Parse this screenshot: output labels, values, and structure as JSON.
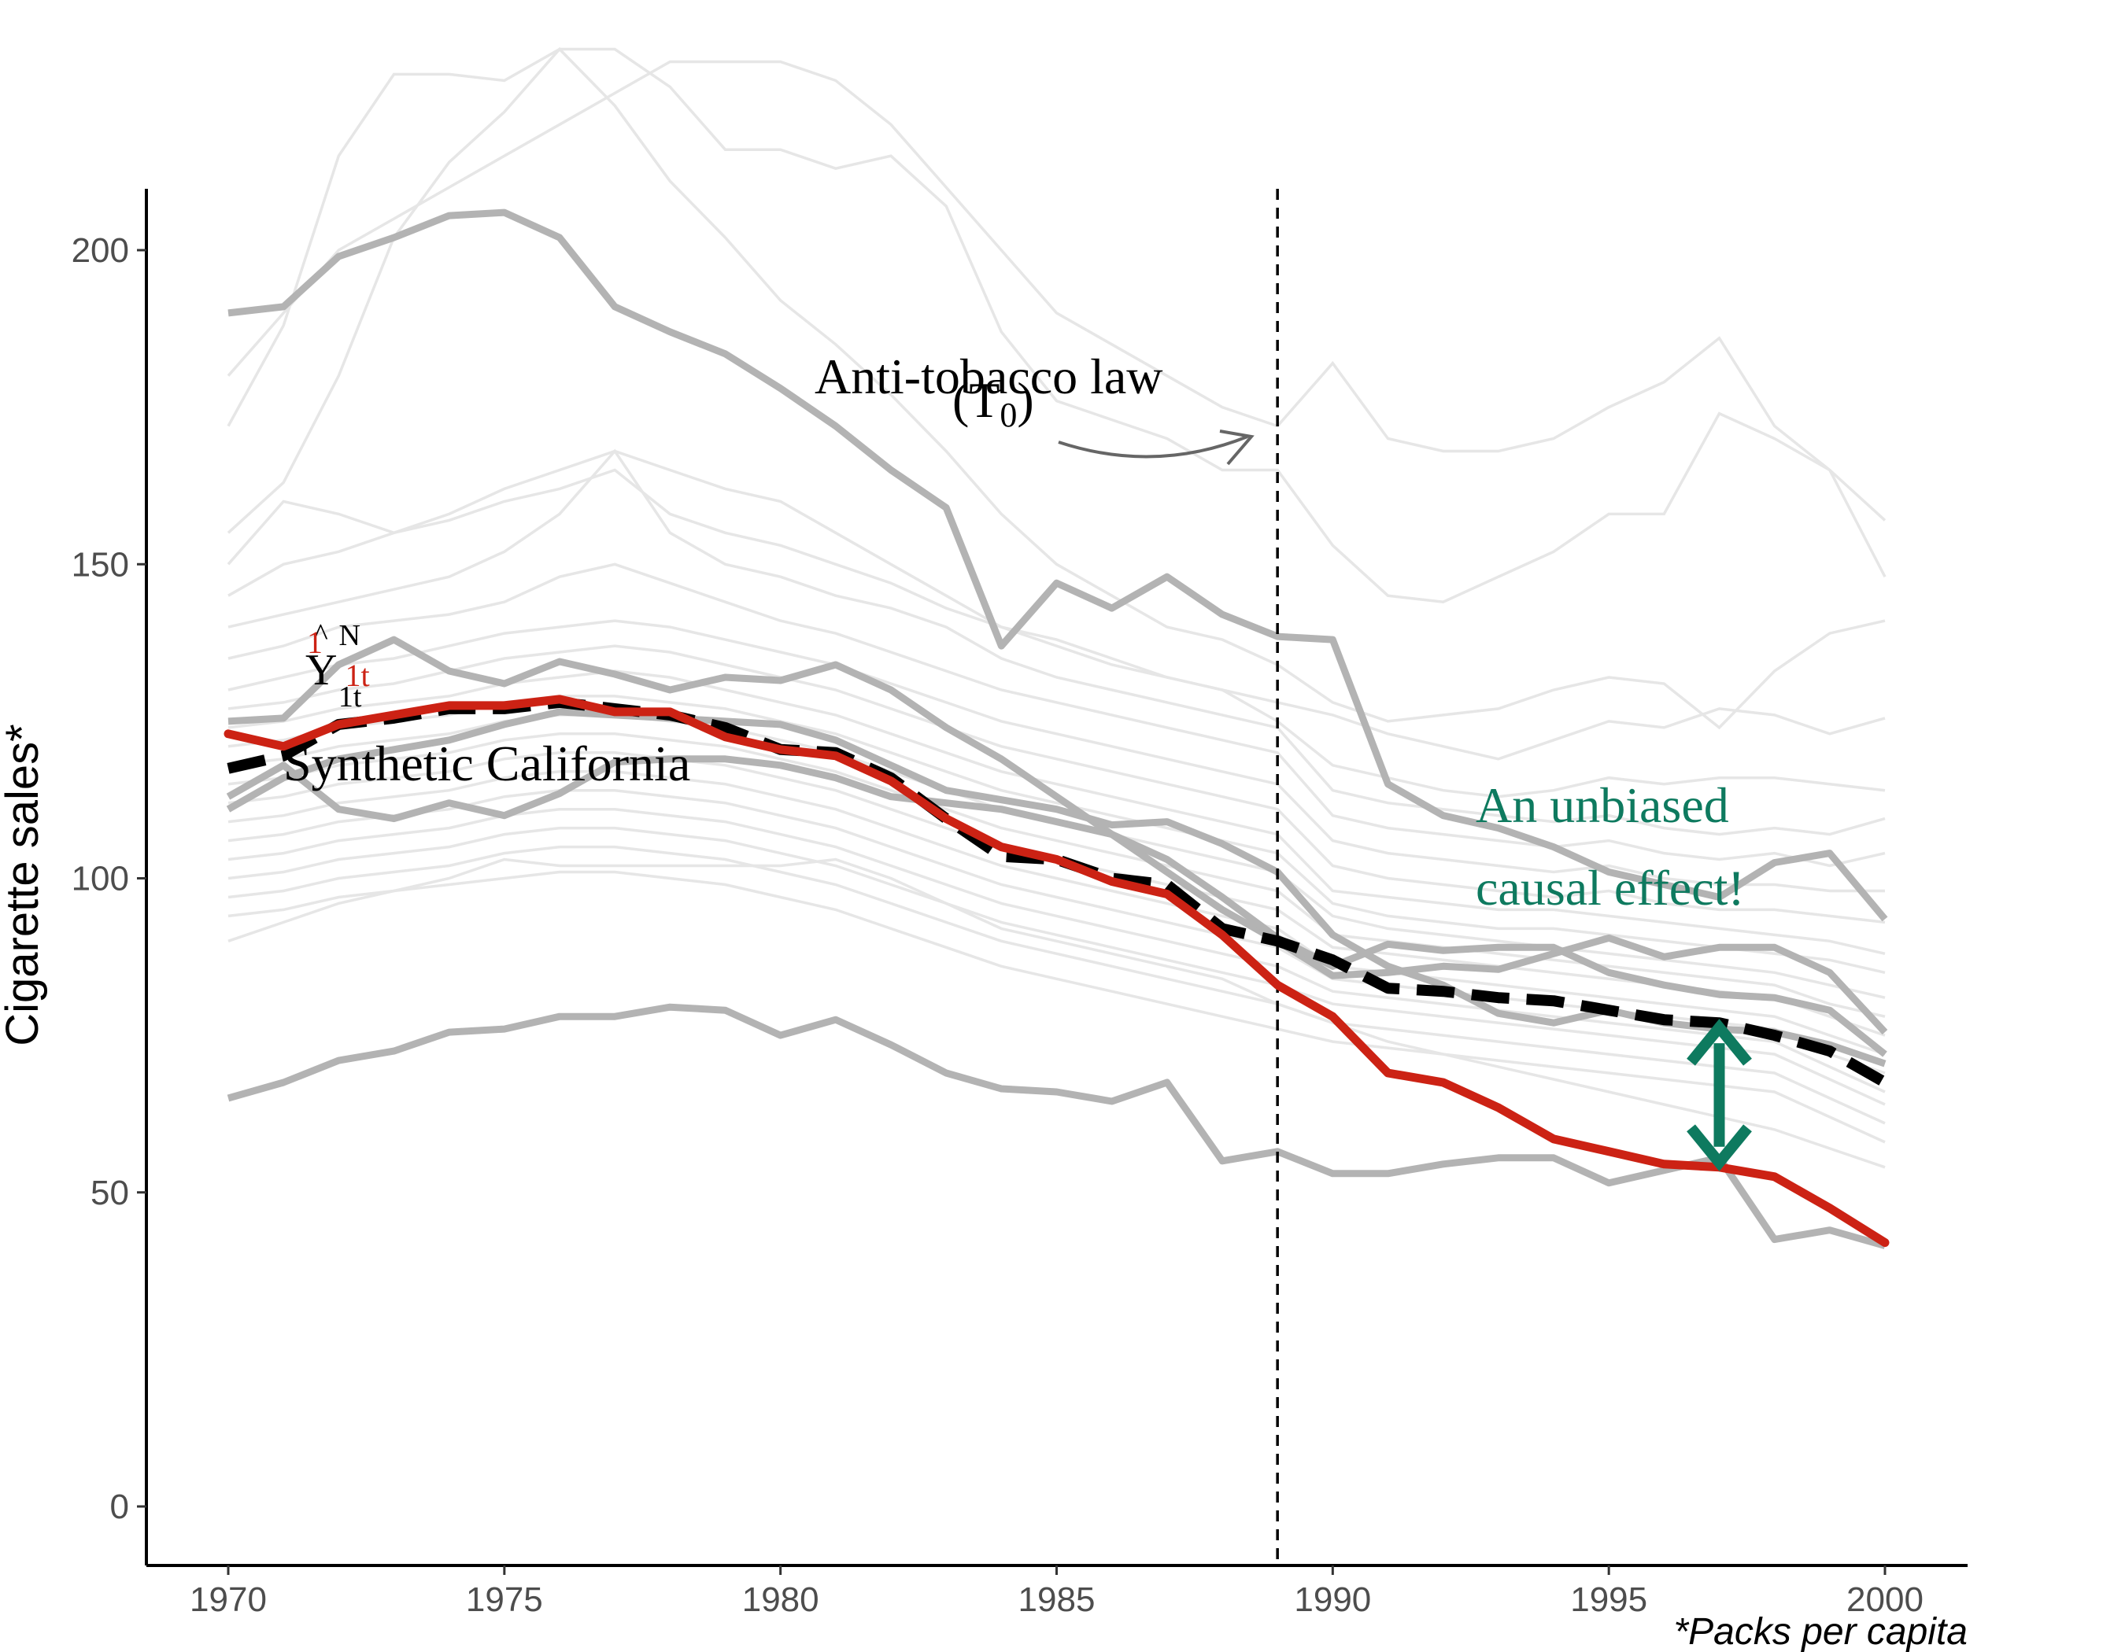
{
  "chart_data": {
    "type": "line",
    "title": "",
    "xlabel": "",
    "ylabel": "Cigarette sales*",
    "caption": "*Packs per capita",
    "xlim": [
      1970,
      2000
    ],
    "ylim": [
      -10,
      210
    ],
    "x_ticks": [
      1970,
      1975,
      1980,
      1985,
      1990,
      1995,
      2000
    ],
    "y_ticks": [
      0,
      50,
      100,
      150,
      200
    ],
    "grid": false,
    "treatment_year": 1989,
    "colors": {
      "california": "#cc2214",
      "synthetic": "#000000",
      "donor_highlight": "#b3b3b3",
      "donor_faint": "#e6e6e6",
      "effect": "#0e7a5f"
    },
    "annotations": {
      "law_label": "Anti-tobacco law",
      "law_sub": "(T",
      "law_sub_index": "0",
      "law_sub_close": ")",
      "synthetic_label": "Synthetic California",
      "effect_line1": "An unbiased",
      "effect_line2": "causal effect!",
      "y_label_main": "Y",
      "y_label_sup": "N",
      "y_label_sub": "1t",
      "y_label_red_sub": "1t",
      "y_label_red_sup": "1"
    },
    "x": [
      1970,
      1971,
      1972,
      1973,
      1974,
      1975,
      1976,
      1977,
      1978,
      1979,
      1980,
      1981,
      1982,
      1983,
      1984,
      1985,
      1986,
      1987,
      1988,
      1989,
      1990,
      1991,
      1992,
      1993,
      1994,
      1995,
      1996,
      1997,
      1998,
      1999,
      2000
    ],
    "california": [
      123.0,
      121.0,
      124.5,
      126.0,
      127.5,
      127.5,
      128.5,
      126.5,
      126.5,
      122.5,
      120.5,
      119.5,
      115.5,
      109.5,
      105.0,
      103.0,
      99.5,
      97.5,
      91.0,
      83.0,
      78.0,
      69.0,
      67.5,
      63.5,
      58.5,
      56.5,
      54.5,
      54.0,
      52.5,
      47.5,
      42.0
    ],
    "synthetic_california": [
      117.5,
      119.5,
      124.5,
      125.5,
      127.0,
      127.0,
      128.0,
      127.0,
      126.0,
      124.0,
      120.5,
      120.0,
      116.0,
      109.5,
      103.5,
      103.0,
      100.0,
      99.0,
      92.0,
      90.0,
      87.0,
      82.5,
      82.0,
      81.0,
      80.5,
      79.0,
      77.5,
      77.0,
      75.0,
      72.5,
      67.5
    ],
    "highlighted_donors": [
      {
        "values": [
          190.0,
          191.0,
          199.0,
          202.0,
          205.5,
          206.0,
          202.0,
          191.0,
          187.0,
          183.5,
          178.0,
          172.0,
          165.0,
          159.0,
          137.0,
          147.0,
          143.0,
          148.0,
          142.0,
          138.5,
          138.0,
          115.0,
          110.0,
          108.0,
          105.0,
          101.0,
          99.0,
          97.0,
          102.5,
          104.0,
          93.5
        ]
      },
      {
        "values": [
          125.0,
          125.5,
          134.0,
          138.0,
          133.0,
          131.0,
          134.5,
          132.5,
          130.0,
          132.0,
          131.5,
          134.0,
          130.0,
          124.0,
          119.0,
          113.0,
          107.0,
          101.0,
          95.0,
          90.0,
          84.5,
          85.0,
          86.0,
          85.5,
          88.0,
          90.5,
          87.5,
          89.0,
          89.0,
          85.0,
          75.5
        ]
      },
      {
        "values": [
          113.0,
          118.0,
          111.0,
          109.5,
          112.0,
          110.0,
          113.5,
          118.5,
          119.0,
          119.0,
          118.0,
          116.0,
          113.0,
          112.0,
          111.0,
          109.0,
          107.0,
          103.0,
          97.0,
          90.5,
          86.0,
          89.5,
          88.5,
          89.0,
          89.0,
          85.0,
          83.0,
          81.5,
          81.0,
          79.0,
          72.0
        ]
      },
      {
        "values": [
          111.0,
          116.0,
          119.0,
          120.5,
          122.0,
          124.5,
          126.5,
          126.0,
          125.5,
          125.0,
          124.5,
          122.0,
          118.0,
          114.0,
          112.5,
          111.0,
          108.5,
          109.0,
          105.5,
          101.0,
          91.0,
          86.0,
          83.0,
          78.5,
          77.0,
          79.0,
          77.0,
          76.0,
          75.5,
          73.5,
          70.5
        ]
      },
      {
        "values": [
          65.0,
          67.5,
          71.0,
          72.5,
          75.5,
          76.0,
          78.0,
          78.0,
          79.5,
          79.0,
          75.0,
          77.5,
          73.5,
          69.0,
          66.5,
          66.0,
          64.5,
          67.5,
          55.0,
          56.5,
          53.0,
          53.0,
          54.5,
          55.5,
          55.5,
          51.5,
          53.5,
          55.5,
          42.5,
          44.0,
          41.5
        ]
      }
    ],
    "faint_donors": [
      {
        "values": [
          180.0,
          190.0,
          200.0,
          205.0,
          210.0,
          215.0,
          220.0,
          225.0,
          230.0,
          230.0,
          230.0,
          227.0,
          220.0,
          210.0,
          200.0,
          190.0,
          185.0,
          180.0,
          175.0,
          172.0,
          182.0,
          170.0,
          168.0,
          168.0,
          170.0,
          175.0,
          179.0,
          186.0,
          172.0,
          165.0,
          148.0
        ]
      },
      {
        "values": [
          172.0,
          188.0,
          215.0,
          228.0,
          228.0,
          227.0,
          232.0,
          232.0,
          226.0,
          216.0,
          216.0,
          213.0,
          215.0,
          207.0,
          187.0,
          176.0,
          173.0,
          170.0,
          165.0,
          165.0,
          153.0,
          145.0,
          144.0,
          148.0,
          152.0,
          158.0,
          158.0,
          174.0,
          170.0,
          165.0,
          157.0
        ]
      },
      {
        "values": [
          155.0,
          163.0,
          180.0,
          202.0,
          214.0,
          222.0,
          232.0,
          223.0,
          211.0,
          202.0,
          192.0,
          185.0,
          177.0,
          168.0,
          158.0,
          150.0,
          145.0,
          140.0,
          138.0,
          134.0,
          128.0,
          125.0,
          126.0,
          127.0,
          130.0,
          132.0,
          131.0,
          124.0,
          133.0,
          139.0,
          141.0
        ]
      },
      {
        "values": [
          150.0,
          160.0,
          158.0,
          155.0,
          158.0,
          162.0,
          165.0,
          168.0,
          165.0,
          162.0,
          160.0,
          155.0,
          150.0,
          145.0,
          140.0,
          138.0,
          135.0,
          132.0,
          130.0,
          128.0,
          126.0,
          123.0,
          121.0,
          119.0,
          122.0,
          125.0,
          124.0,
          127.0,
          126.0,
          123.0,
          125.5
        ]
      },
      {
        "values": [
          145.0,
          150.0,
          152.0,
          155.0,
          157.0,
          160.0,
          162.0,
          165.0,
          158.0,
          155.0,
          153.0,
          150.0,
          147.0,
          143.0,
          140.0,
          137.0,
          134.0,
          132.0,
          130.0,
          125.0,
          118.0,
          116.0,
          114.0,
          113.0,
          114.0,
          116.0,
          115.0,
          116.0,
          116.0,
          115.0,
          114.0
        ]
      },
      {
        "values": [
          140.0,
          142.0,
          144.0,
          146.0,
          148.0,
          152.0,
          158.0,
          168.0,
          155.0,
          150.0,
          148.0,
          145.0,
          143.0,
          140.0,
          135.0,
          132.0,
          130.0,
          128.0,
          126.0,
          124.0,
          114.0,
          112.0,
          111.0,
          110.0,
          109.0,
          110.0,
          108.0,
          107.0,
          108.0,
          107.0,
          109.5
        ]
      },
      {
        "values": [
          135.0,
          137.0,
          140.0,
          141.0,
          142.0,
          144.0,
          148.0,
          150.0,
          147.0,
          144.0,
          141.0,
          139.0,
          136.0,
          133.0,
          130.0,
          128.0,
          126.0,
          124.0,
          122.0,
          120.0,
          110.0,
          108.0,
          107.0,
          106.0,
          105.0,
          106.0,
          104.0,
          103.0,
          104.0,
          102.0,
          104.0
        ]
      },
      {
        "values": [
          130.0,
          132.0,
          134.0,
          135.0,
          137.0,
          139.0,
          140.0,
          141.0,
          140.0,
          138.0,
          136.0,
          134.0,
          131.0,
          128.0,
          125.0,
          123.0,
          121.0,
          119.0,
          117.0,
          115.0,
          106.0,
          104.0,
          103.0,
          102.0,
          101.0,
          102.0,
          100.0,
          99.0,
          99.0,
          98.0,
          98.0
        ]
      },
      {
        "values": [
          127.0,
          128.0,
          130.0,
          131.0,
          133.0,
          135.0,
          136.0,
          137.0,
          136.0,
          134.0,
          132.0,
          130.0,
          127.0,
          124.0,
          121.0,
          119.0,
          117.0,
          115.0,
          113.0,
          111.0,
          102.0,
          100.0,
          99.0,
          98.0,
          97.0,
          98.0,
          96.0,
          95.0,
          95.0,
          94.0,
          93.0
        ]
      },
      {
        "values": [
          124.0,
          125.0,
          127.0,
          128.0,
          129.0,
          131.0,
          132.0,
          133.0,
          132.0,
          130.0,
          128.0,
          126.0,
          123.0,
          120.0,
          117.0,
          115.0,
          113.0,
          111.0,
          109.0,
          107.0,
          98.0,
          97.0,
          96.0,
          95.0,
          95.0,
          94.0,
          93.0,
          92.0,
          91.0,
          90.0,
          88.0
        ]
      },
      {
        "values": [
          121.0,
          122.0,
          124.0,
          125.0,
          126.0,
          128.0,
          129.0,
          129.0,
          128.0,
          127.0,
          125.0,
          123.0,
          120.0,
          117.0,
          114.0,
          112.0,
          110.0,
          108.0,
          106.0,
          104.0,
          96.0,
          94.0,
          93.0,
          92.0,
          92.0,
          91.0,
          90.0,
          89.0,
          88.0,
          87.0,
          85.0
        ]
      },
      {
        "values": [
          118.0,
          119.0,
          121.0,
          122.0,
          123.0,
          125.0,
          126.0,
          126.0,
          125.0,
          124.0,
          122.0,
          120.0,
          117.0,
          114.0,
          111.0,
          109.0,
          107.0,
          105.0,
          103.0,
          101.0,
          94.0,
          92.0,
          91.0,
          90.0,
          89.0,
          88.0,
          87.0,
          86.0,
          85.0,
          83.0,
          81.0
        ]
      },
      {
        "values": [
          115.0,
          116.0,
          118.0,
          119.0,
          120.0,
          122.0,
          123.0,
          123.0,
          122.0,
          121.0,
          119.0,
          117.0,
          114.0,
          111.0,
          108.0,
          106.0,
          104.0,
          102.0,
          100.0,
          98.0,
          91.0,
          90.0,
          89.0,
          88.0,
          87.0,
          86.0,
          85.0,
          84.0,
          83.0,
          80.0,
          78.0
        ]
      },
      {
        "values": [
          112.0,
          113.0,
          115.0,
          116.0,
          117.0,
          119.0,
          120.0,
          120.0,
          119.0,
          118.0,
          116.0,
          114.0,
          111.0,
          108.0,
          105.0,
          103.0,
          101.0,
          99.0,
          97.0,
          95.0,
          89.0,
          88.0,
          87.0,
          86.0,
          85.0,
          84.0,
          83.0,
          82.0,
          81.0,
          78.0,
          75.0
        ]
      },
      {
        "values": [
          109.0,
          110.0,
          112.0,
          113.0,
          114.0,
          116.0,
          117.0,
          117.0,
          116.0,
          115.0,
          113.0,
          111.0,
          108.0,
          105.0,
          102.0,
          100.0,
          98.0,
          96.0,
          94.0,
          92.0,
          86.0,
          85.0,
          84.0,
          83.0,
          82.0,
          81.0,
          80.0,
          79.0,
          78.0,
          75.0,
          72.0
        ]
      },
      {
        "values": [
          106.0,
          107.0,
          109.0,
          110.0,
          111.0,
          113.0,
          114.0,
          114.0,
          113.0,
          112.0,
          110.0,
          108.0,
          105.0,
          102.0,
          99.0,
          97.0,
          95.0,
          93.0,
          91.0,
          89.0,
          84.0,
          83.0,
          82.0,
          81.0,
          80.0,
          79.0,
          78.0,
          77.0,
          76.0,
          72.0,
          69.0
        ]
      },
      {
        "values": [
          103.0,
          104.0,
          106.0,
          107.0,
          108.0,
          110.0,
          111.0,
          111.0,
          110.0,
          109.0,
          107.0,
          105.0,
          102.0,
          99.0,
          96.0,
          94.0,
          92.0,
          90.0,
          88.0,
          86.0,
          82.0,
          81.0,
          80.0,
          79.0,
          78.0,
          77.0,
          76.0,
          75.0,
          74.0,
          70.0,
          66.0
        ]
      },
      {
        "values": [
          100.0,
          101.0,
          103.0,
          104.0,
          105.0,
          107.0,
          108.0,
          108.0,
          107.0,
          106.0,
          104.0,
          102.0,
          99.0,
          96.0,
          93.0,
          91.0,
          89.0,
          87.0,
          85.0,
          83.0,
          80.0,
          79.0,
          78.0,
          77.0,
          76.0,
          75.0,
          74.0,
          73.0,
          72.0,
          68.0,
          64.0
        ]
      },
      {
        "values": [
          97.0,
          98.0,
          100.0,
          101.0,
          102.0,
          104.0,
          105.0,
          105.0,
          104.0,
          103.0,
          101.0,
          99.0,
          96.0,
          93.0,
          90.0,
          88.0,
          86.0,
          84.0,
          82.0,
          80.0,
          77.0,
          76.0,
          75.0,
          74.0,
          73.0,
          72.0,
          71.0,
          70.0,
          69.0,
          65.0,
          61.0
        ]
      },
      {
        "values": [
          94.0,
          95.0,
          97.0,
          98.0,
          99.0,
          100.0,
          101.0,
          101.0,
          100.0,
          99.0,
          97.0,
          95.0,
          92.0,
          89.0,
          86.0,
          84.0,
          82.0,
          80.0,
          78.0,
          76.0,
          74.0,
          73.0,
          72.0,
          71.0,
          70.0,
          69.0,
          68.0,
          67.0,
          66.0,
          62.0,
          58.0
        ]
      },
      {
        "values": [
          90.0,
          93.0,
          96.0,
          98.0,
          100.0,
          103.0,
          102.0,
          102.0,
          102.0,
          102.0,
          102.0,
          103.0,
          100.0,
          96.0,
          92.0,
          90.0,
          88.0,
          86.0,
          84.0,
          80.0,
          77.0,
          74.0,
          72.0,
          70.0,
          68.0,
          66.0,
          64.0,
          62.0,
          60.0,
          57.0,
          54.0
        ]
      }
    ]
  }
}
